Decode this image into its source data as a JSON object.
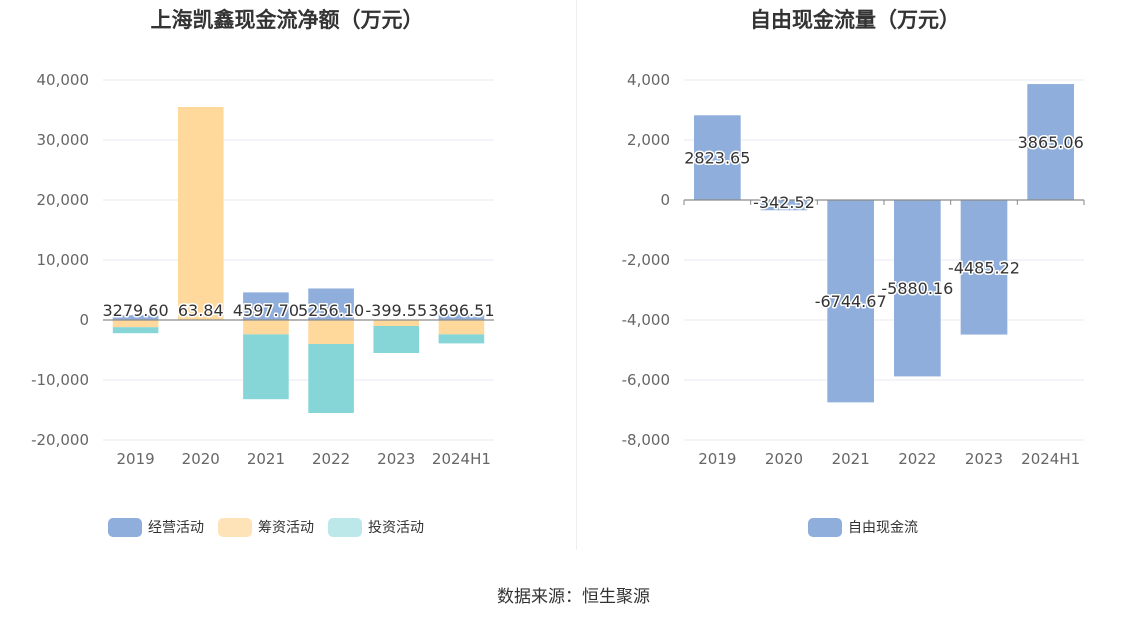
{
  "chart_data": [
    {
      "type": "bar",
      "stacked": true,
      "title": "上海凯鑫现金流净额（万元）",
      "categories": [
        "2019",
        "2020",
        "2021",
        "2022",
        "2023",
        "2024H1"
      ],
      "ylim": [
        -20000,
        40000
      ],
      "yticks": [
        -20000,
        -10000,
        0,
        10000,
        20000,
        30000,
        40000
      ],
      "ytick_labels": [
        "-20,000",
        "-10,000",
        "0",
        "10,000",
        "20,000",
        "30,000",
        "40,000"
      ],
      "series": [
        {
          "name": "经营活动",
          "color": "#8faedb",
          "values": [
            800,
            0,
            4600,
            5256,
            0,
            1200
          ]
        },
        {
          "name": "筹资活动",
          "color": "#ffd89c",
          "values": [
            -1200,
            35500,
            -2400,
            -4000,
            -1000,
            -2400
          ]
        },
        {
          "name": "投资活动",
          "color": "#86d6d8",
          "values": [
            -1000,
            0,
            -10800,
            -11500,
            -4500,
            -1500
          ]
        }
      ],
      "data_labels": [
        {
          "category": "2019",
          "text": "3279.60",
          "value": 3279.6
        },
        {
          "category": "2020",
          "text": "63.84",
          "value": 63.84
        },
        {
          "category": "2021",
          "text": "4597.70",
          "value": 4597.7
        },
        {
          "category": "2022",
          "text": "5256.10",
          "value": 5256.1
        },
        {
          "category": "2023",
          "text": "-399.55",
          "value": -399.55
        },
        {
          "category": "2024H1",
          "text": "3696.51",
          "value": 3696.51
        }
      ],
      "legend": "bottom"
    },
    {
      "type": "bar",
      "title": "自由现金流量（万元）",
      "categories": [
        "2019",
        "2020",
        "2021",
        "2022",
        "2023",
        "2024H1"
      ],
      "ylim": [
        -8000,
        4000
      ],
      "yticks": [
        -8000,
        -6000,
        -4000,
        -2000,
        0,
        2000,
        4000
      ],
      "ytick_labels": [
        "-8,000",
        "-6,000",
        "-4,000",
        "-2,000",
        "0",
        "2,000",
        "4,000"
      ],
      "series": [
        {
          "name": "自由现金流",
          "color": "#8faedb",
          "values": [
            2823.65,
            -342.52,
            -6744.67,
            -5880.16,
            -4485.22,
            3865.06
          ]
        }
      ],
      "data_labels": [
        {
          "category": "2019",
          "text": "2823.65",
          "value": 2823.65
        },
        {
          "category": "2020",
          "text": "-342.52",
          "value": -342.52
        },
        {
          "category": "2021",
          "text": "-6744.67",
          "value": -6744.67
        },
        {
          "category": "2022",
          "text": "-5880.16",
          "value": -5880.16
        },
        {
          "category": "2023",
          "text": "-4485.22",
          "value": -4485.22
        },
        {
          "category": "2024H1",
          "text": "3865.06",
          "value": 3865.06
        }
      ],
      "legend": "bottom"
    }
  ],
  "source": "数据来源：恒生聚源"
}
